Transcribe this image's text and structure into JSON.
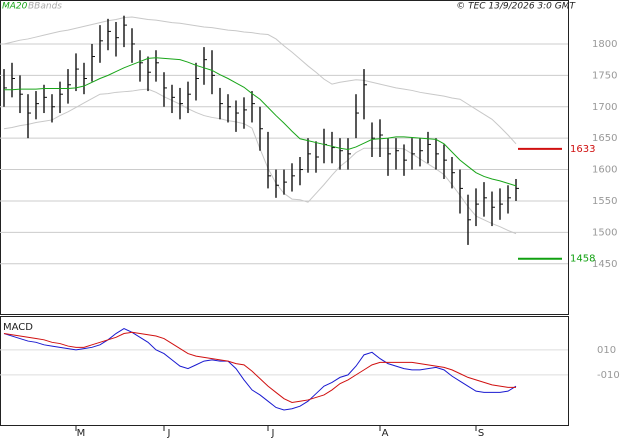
{
  "chart_data": {
    "type": "ohlc",
    "copyright": "© TEC 13/9/2026 3:0 GMT",
    "categories": [
      null,
      null,
      null,
      null,
      null,
      null,
      null,
      null,
      null,
      "M",
      null,
      null,
      null,
      null,
      null,
      null,
      null,
      null,
      null,
      null,
      "J",
      null,
      null,
      null,
      null,
      null,
      null,
      null,
      null,
      null,
      null,
      null,
      null,
      "J",
      null,
      null,
      null,
      null,
      null,
      null,
      null,
      null,
      null,
      null,
      null,
      null,
      null,
      "A",
      null,
      null,
      null,
      null,
      null,
      null,
      null,
      null,
      null,
      null,
      null,
      "S",
      null,
      null,
      null,
      null,
      null
    ],
    "close": [
      1730,
      1745,
      1720,
      1690,
      1705,
      1715,
      1700,
      1720,
      1735,
      1760,
      1745,
      1780,
      1805,
      1820,
      1810,
      1830,
      1800,
      1770,
      1755,
      1770,
      1730,
      1715,
      1705,
      1720,
      1745,
      1775,
      1750,
      1705,
      1700,
      1690,
      1695,
      1705,
      1665,
      1590,
      1575,
      1580,
      1590,
      1600,
      1625,
      1620,
      1640,
      1635,
      1630,
      1625,
      1690,
      1735,
      1650,
      1655,
      1625,
      1630,
      1615,
      1625,
      1630,
      1640,
      1625,
      1615,
      1595,
      1570,
      1520,
      1545,
      1555,
      1540,
      1545,
      1555,
      1570
    ],
    "high": [
      1760,
      1770,
      1750,
      1720,
      1725,
      1735,
      1720,
      1740,
      1760,
      1785,
      1770,
      1800,
      1830,
      1840,
      1835,
      1845,
      1825,
      1790,
      1780,
      1790,
      1755,
      1735,
      1730,
      1740,
      1770,
      1795,
      1790,
      1730,
      1720,
      1710,
      1715,
      1725,
      1700,
      1660,
      1600,
      1600,
      1610,
      1620,
      1650,
      1645,
      1665,
      1660,
      1650,
      1650,
      1720,
      1760,
      1675,
      1680,
      1650,
      1650,
      1640,
      1650,
      1650,
      1660,
      1650,
      1640,
      1620,
      1600,
      1560,
      1570,
      1580,
      1565,
      1570,
      1575,
      1585
    ],
    "low": [
      1700,
      1715,
      1690,
      1650,
      1680,
      1690,
      1675,
      1690,
      1705,
      1725,
      1720,
      1740,
      1770,
      1790,
      1780,
      1795,
      1770,
      1740,
      1725,
      1740,
      1700,
      1690,
      1680,
      1690,
      1710,
      1735,
      1720,
      1680,
      1675,
      1660,
      1665,
      1675,
      1630,
      1570,
      1555,
      1560,
      1565,
      1575,
      1595,
      1595,
      1610,
      1610,
      1600,
      1600,
      1650,
      1680,
      1620,
      1620,
      1590,
      1600,
      1590,
      1600,
      1605,
      1610,
      1600,
      1585,
      1570,
      1530,
      1480,
      1510,
      1525,
      1510,
      1520,
      1530,
      1550
    ],
    "ma": {
      "name": "MA20",
      "color": "#19a519",
      "values": [
        1727,
        1727,
        1728,
        1728,
        1728,
        1729,
        1729,
        1729,
        1729,
        1730,
        1733,
        1739,
        1745,
        1750,
        1756,
        1762,
        1767,
        1772,
        1777,
        1778,
        1777,
        1776,
        1775,
        1771,
        1766,
        1762,
        1758,
        1751,
        1745,
        1738,
        1731,
        1721,
        1712,
        1699,
        1686,
        1674,
        1661,
        1649,
        1646,
        1643,
        1640,
        1637,
        1634,
        1632,
        1636,
        1642,
        1648,
        1649,
        1650,
        1652,
        1652,
        1651,
        1650,
        1649,
        1648,
        1641,
        1628,
        1615,
        1605,
        1595,
        1589,
        1585,
        1582,
        1578,
        1574
      ]
    },
    "bbands": {
      "name": "BBands",
      "color": "#c8c8c8",
      "upper": [
        1800,
        1803,
        1806,
        1808,
        1811,
        1814,
        1817,
        1820,
        1822,
        1825,
        1828,
        1831,
        1834,
        1837,
        1839,
        1842,
        1843,
        1841,
        1839,
        1838,
        1836,
        1834,
        1833,
        1831,
        1829,
        1827,
        1826,
        1824,
        1822,
        1821,
        1819,
        1818,
        1816,
        1815,
        1808,
        1797,
        1787,
        1776,
        1765,
        1755,
        1744,
        1736,
        1739,
        1741,
        1743,
        1742,
        1739,
        1736,
        1733,
        1730,
        1728,
        1726,
        1723,
        1721,
        1719,
        1717,
        1714,
        1712,
        1704,
        1696,
        1688,
        1680,
        1668,
        1655,
        1641
      ],
      "lower": [
        1665,
        1667,
        1670,
        1672,
        1675,
        1677,
        1679,
        1686,
        1692,
        1699,
        1706,
        1713,
        1720,
        1721,
        1723,
        1724,
        1725,
        1727,
        1728,
        1723,
        1716,
        1710,
        1704,
        1697,
        1691,
        1686,
        1683,
        1681,
        1678,
        1676,
        1673,
        1666,
        1633,
        1602,
        1578,
        1562,
        1553,
        1552,
        1548,
        1562,
        1576,
        1591,
        1605,
        1615,
        1627,
        1634,
        1634,
        1634,
        1634,
        1634,
        1633,
        1625,
        1617,
        1609,
        1601,
        1592,
        1576,
        1559,
        1541,
        1526,
        1520,
        1514,
        1509,
        1503,
        1498
      ]
    },
    "ylim": [
      1370,
      1870
    ],
    "yticks": [
      1450,
      1500,
      1550,
      1600,
      1650,
      1700,
      1750,
      1800
    ],
    "levels": [
      {
        "value": 1633,
        "color": "#d01010"
      },
      {
        "value": 1458,
        "color": "#10a010"
      }
    ],
    "macd": {
      "title": "MACD",
      "ylim": [
        -50,
        37
      ],
      "yticks": [
        {
          "value": 10,
          "label": "010"
        },
        {
          "value": -10,
          "label": "-010"
        }
      ],
      "series": [
        {
          "color": "#1a1ad0",
          "values": [
            23,
            21,
            19,
            17,
            16,
            14,
            13,
            12,
            11,
            10,
            11,
            12,
            14,
            18,
            23,
            27,
            24,
            20,
            16,
            10,
            7,
            2,
            -3,
            -5,
            -2,
            1,
            2,
            1,
            1,
            -5,
            -14,
            -22,
            -26,
            -31,
            -36,
            -38,
            -37,
            -35,
            -31,
            -25,
            -19,
            -16,
            -12,
            -10,
            -3,
            6,
            8,
            3,
            -1,
            -3,
            -5,
            -6,
            -6,
            -5,
            -4,
            -6,
            -11,
            -15,
            -19,
            -23,
            -24,
            -24,
            -24,
            -23,
            -19
          ]
        },
        {
          "color": "#d01010",
          "values": [
            23,
            22,
            21,
            20,
            19,
            18,
            16,
            15,
            13,
            12,
            12,
            14,
            16,
            18,
            20,
            23,
            24,
            23,
            22,
            21,
            19,
            15,
            11,
            7,
            5,
            4,
            3,
            2,
            1,
            -1,
            -2,
            -7,
            -13,
            -19,
            -24,
            -29,
            -32,
            -31,
            -30,
            -28,
            -26,
            -22,
            -17,
            -14,
            -10,
            -6,
            -2,
            0,
            0,
            0,
            0,
            0,
            -1,
            -2,
            -3,
            -4,
            -6,
            -9,
            -12,
            -14,
            -16,
            -18,
            -19,
            -20,
            -20
          ]
        }
      ]
    }
  }
}
